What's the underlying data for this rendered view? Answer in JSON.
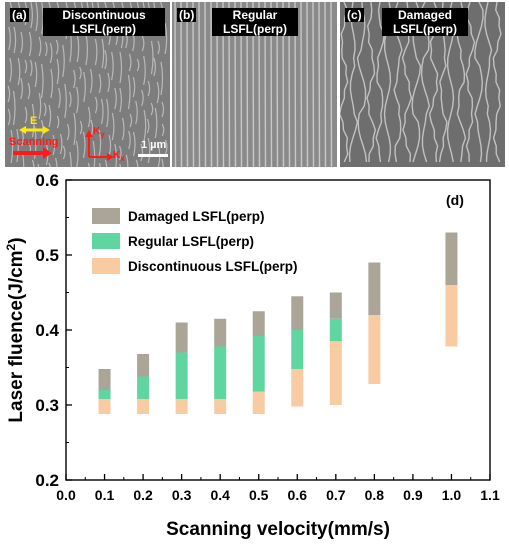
{
  "panels": [
    {
      "tag": "(a)",
      "title_line1": "Discontinuous",
      "title_line2": "LSFL(perp)"
    },
    {
      "tag": "(b)",
      "title_line1": "Regular",
      "title_line2": "LSFL(perp)"
    },
    {
      "tag": "(c)",
      "title_line1": "Damaged",
      "title_line2": "LSFL(perp)"
    }
  ],
  "annotations": {
    "e_label": "E",
    "scanning_label": "Scanning",
    "ky_label": "K",
    "ky_sub": "y",
    "kx_label": "K",
    "kx_sub": "x",
    "scale_bar": "1 µm"
  },
  "colors": {
    "damaged": "#aaa596",
    "regular": "#5fd6a0",
    "discontinuous": "#f9cba3",
    "e_arrow": "#ffea00",
    "scan_arrow": "#ff1a1a"
  },
  "chart_data": {
    "type": "bar",
    "panel_label": "(d)",
    "xlabel": "Scanning velocity(mm/s)",
    "ylabel_main": "Laser fluence(J/cm",
    "ylabel_sup": "2",
    "ylabel_end": ")",
    "xlim": [
      0.0,
      1.1
    ],
    "ylim": [
      0.2,
      0.6
    ],
    "xticks": [
      "0.0",
      "0.1",
      "0.2",
      "0.3",
      "0.4",
      "0.5",
      "0.6",
      "0.7",
      "0.8",
      "0.9",
      "1.0",
      "1.1"
    ],
    "yticks": [
      "0.2",
      "0.3",
      "0.4",
      "0.5",
      "0.6"
    ],
    "x": [
      0.1,
      0.2,
      0.3,
      0.4,
      0.5,
      0.6,
      0.7,
      0.8,
      1.0
    ],
    "series": [
      {
        "name": "Discontinuous LSFL(perp)",
        "color": "#f9cba3",
        "low": [
          0.288,
          0.288,
          0.288,
          0.288,
          0.288,
          0.298,
          0.3,
          0.328,
          0.378
        ],
        "high": [
          0.308,
          0.308,
          0.308,
          0.308,
          0.318,
          0.348,
          0.385,
          0.42,
          0.46
        ]
      },
      {
        "name": "Regular LSFL(perp)",
        "color": "#5fd6a0",
        "low": [
          0.308,
          0.308,
          0.308,
          0.308,
          0.318,
          0.348,
          0.385,
          null,
          null
        ],
        "high": [
          0.32,
          0.338,
          0.37,
          0.378,
          0.392,
          0.4,
          0.415,
          null,
          null
        ]
      },
      {
        "name": "Damaged LSFL(perp)",
        "color": "#aaa596",
        "low": [
          0.32,
          0.338,
          0.37,
          0.378,
          0.392,
          0.4,
          0.415,
          0.42,
          0.46
        ],
        "high": [
          0.348,
          0.368,
          0.41,
          0.415,
          0.425,
          0.445,
          0.45,
          0.49,
          0.53
        ]
      }
    ],
    "legend_order": [
      "Damaged LSFL(perp)",
      "Regular LSFL(perp)",
      "Discontinuous LSFL(perp)"
    ],
    "legend_position": "top-left"
  }
}
